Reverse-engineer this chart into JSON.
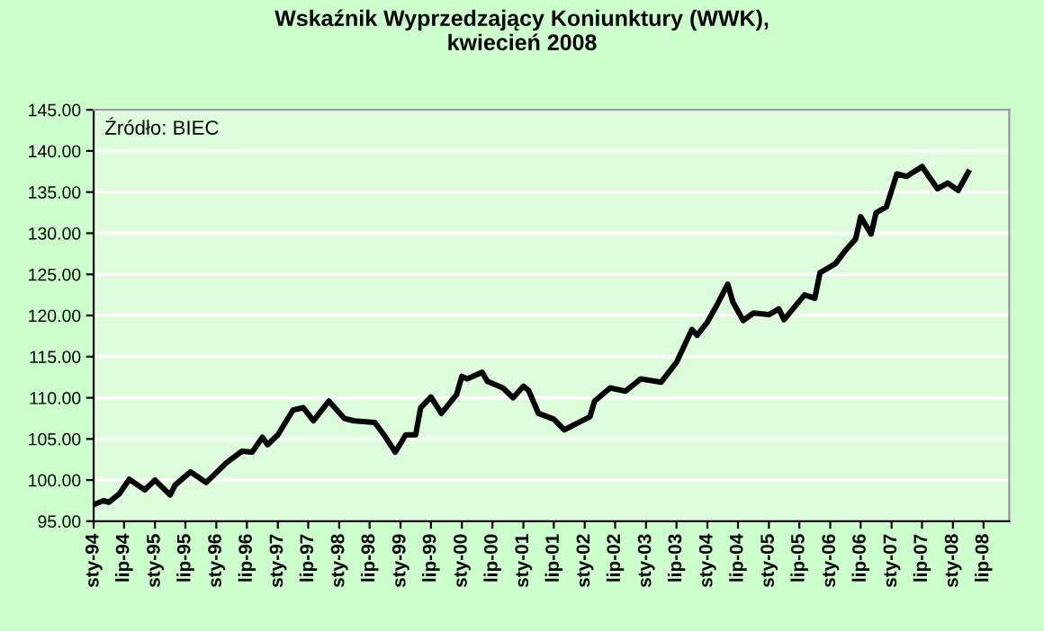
{
  "chart_data": {
    "type": "line",
    "title": "Wskaźnik Wyprzedzający Koniunktury (WWK),\nkwiecień 2008",
    "annotations": [
      "Źródło: BIEC"
    ],
    "series": [
      {
        "color": "#000000",
        "x": [
          "1994-01",
          "1994-03",
          "1994-04",
          "1994-06",
          "1994-08",
          "1994-11",
          "1995-01",
          "1995-04",
          "1995-05",
          "1995-08",
          "1995-11",
          "1996-03",
          "1996-06",
          "1996-08",
          "1996-10",
          "1996-11",
          "1997-01",
          "1997-04",
          "1997-06",
          "1997-08",
          "1997-11",
          "1998-02",
          "1998-04",
          "1998-08",
          "1998-10",
          "1998-12",
          "1999-02",
          "1999-04",
          "1999-05",
          "1999-07",
          "1999-09",
          "1999-12",
          "2000-01",
          "2000-02",
          "2000-05",
          "2000-06",
          "2000-09",
          "2000-11",
          "2001-01",
          "2001-02",
          "2001-04",
          "2001-07",
          "2001-09",
          "2002-02",
          "2002-03",
          "2002-06",
          "2002-09",
          "2002-12",
          "2003-04",
          "2003-07",
          "2003-10",
          "2003-11",
          "2004-01",
          "2004-03",
          "2004-05",
          "2004-06",
          "2004-08",
          "2004-10",
          "2005-01",
          "2005-03",
          "2005-04",
          "2005-08",
          "2005-10",
          "2005-11",
          "2006-02",
          "2006-04",
          "2006-06",
          "2006-07",
          "2006-09",
          "2006-10",
          "2006-12",
          "2007-02",
          "2007-04",
          "2007-07",
          "2007-10",
          "2007-12",
          "2008-02",
          "2008-04"
        ],
        "values": [
          97.0,
          97.5,
          97.3,
          98.3,
          100.1,
          98.8,
          100.0,
          98.2,
          99.4,
          101.0,
          99.7,
          102.1,
          103.5,
          103.4,
          105.2,
          104.3,
          105.5,
          108.5,
          108.8,
          107.2,
          109.6,
          107.5,
          107.2,
          107.0,
          105.3,
          103.4,
          105.5,
          105.5,
          108.8,
          110.1,
          108.1,
          110.4,
          112.6,
          112.3,
          113.1,
          112.0,
          111.2,
          110.0,
          111.4,
          110.9,
          108.1,
          107.4,
          106.1,
          107.7,
          109.6,
          111.2,
          110.8,
          112.3,
          111.9,
          114.3,
          118.3,
          117.6,
          119.2,
          121.4,
          123.8,
          121.6,
          119.4,
          120.3,
          120.1,
          120.8,
          119.5,
          122.5,
          122.1,
          125.2,
          126.3,
          127.9,
          129.3,
          132.0,
          129.9,
          132.5,
          133.2,
          137.2,
          136.9,
          138.1,
          135.4,
          136.1,
          135.2,
          137.4
        ]
      }
    ],
    "xlim": [
      "1994-01",
      "2008-12"
    ],
    "xticks": [
      {
        "value": "1994-01",
        "label": "sty-94"
      },
      {
        "value": "1994-07",
        "label": "lip-94"
      },
      {
        "value": "1995-01",
        "label": "sty-95"
      },
      {
        "value": "1995-07",
        "label": "lip-95"
      },
      {
        "value": "1996-01",
        "label": "sty-96"
      },
      {
        "value": "1996-07",
        "label": "lip-96"
      },
      {
        "value": "1997-01",
        "label": "sty-97"
      },
      {
        "value": "1997-07",
        "label": "lip-97"
      },
      {
        "value": "1998-01",
        "label": "sty-98"
      },
      {
        "value": "1998-07",
        "label": "lip-98"
      },
      {
        "value": "1999-01",
        "label": "sty-99"
      },
      {
        "value": "1999-07",
        "label": "lip-99"
      },
      {
        "value": "2000-01",
        "label": "sty-00"
      },
      {
        "value": "2000-07",
        "label": "lip-00"
      },
      {
        "value": "2001-01",
        "label": "sty-01"
      },
      {
        "value": "2001-07",
        "label": "lip-01"
      },
      {
        "value": "2002-01",
        "label": "sty-02"
      },
      {
        "value": "2002-07",
        "label": "lip-02"
      },
      {
        "value": "2003-01",
        "label": "sty-03"
      },
      {
        "value": "2003-07",
        "label": "lip-03"
      },
      {
        "value": "2004-01",
        "label": "sty-04"
      },
      {
        "value": "2004-07",
        "label": "lip-04"
      },
      {
        "value": "2005-01",
        "label": "sty-05"
      },
      {
        "value": "2005-07",
        "label": "lip-05"
      },
      {
        "value": "2006-01",
        "label": "sty-06"
      },
      {
        "value": "2006-07",
        "label": "lip-06"
      },
      {
        "value": "2007-01",
        "label": "sty-07"
      },
      {
        "value": "2007-07",
        "label": "lip-07"
      },
      {
        "value": "2008-01",
        "label": "sty-08"
      },
      {
        "value": "2008-07",
        "label": "lip-08"
      }
    ],
    "ylim": [
      95,
      145
    ],
    "yticks": [
      {
        "value": 95,
        "label": "95.00"
      },
      {
        "value": 100,
        "label": "100.00"
      },
      {
        "value": 105,
        "label": "105.00"
      },
      {
        "value": 110,
        "label": "110.00"
      },
      {
        "value": 115,
        "label": "115.00"
      },
      {
        "value": 120,
        "label": "120.00"
      },
      {
        "value": 125,
        "label": "125.00"
      },
      {
        "value": 130,
        "label": "130.00"
      },
      {
        "value": 135,
        "label": "135.00"
      },
      {
        "value": 140,
        "label": "140.00"
      },
      {
        "value": 145,
        "label": "145.00"
      }
    ],
    "grid": "y",
    "marker": "none",
    "line_style": "solid"
  }
}
